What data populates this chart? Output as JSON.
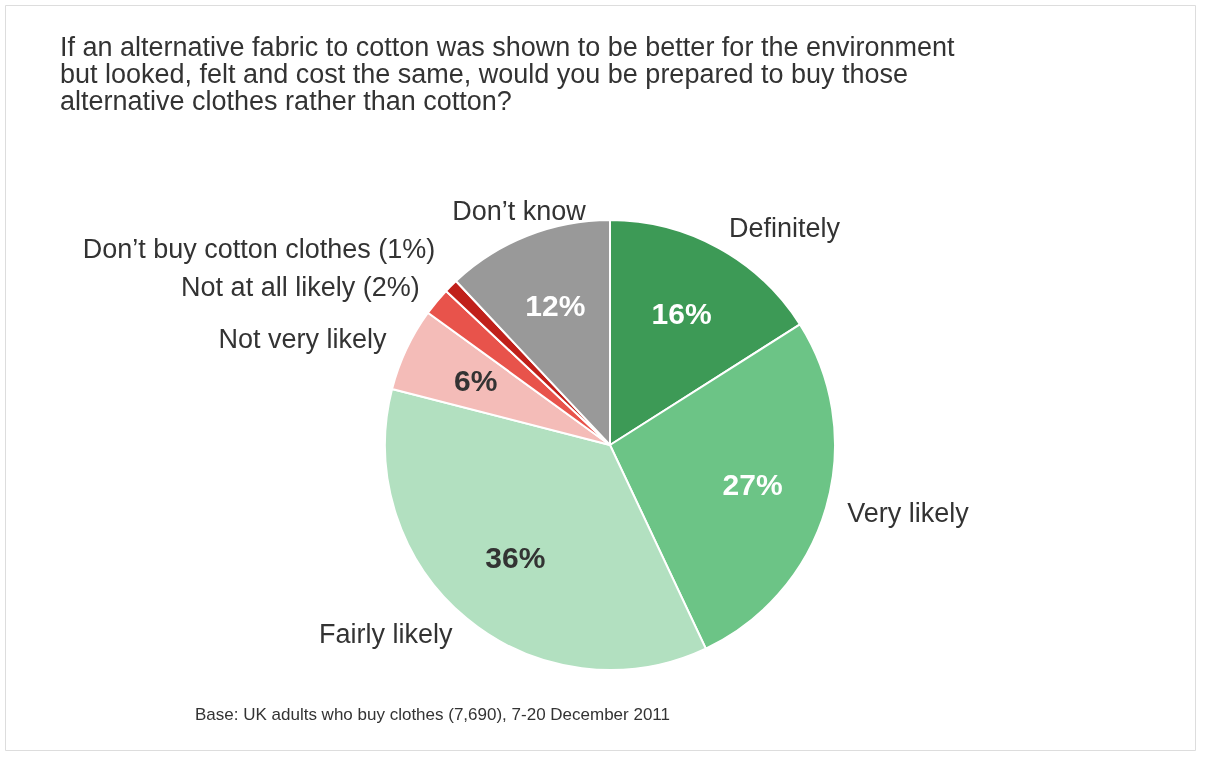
{
  "chart_data": {
    "type": "pie",
    "title": "If an alternative fabric to cotton was shown to be better for the environment but looked, felt and cost the same, would you be prepared to buy those alternative clothes rather than cotton?",
    "categories": [
      "Definitely",
      "Very likely",
      "Fairly likely",
      "Not very likely",
      "Not at all likely (2%)",
      "Don’t buy cotton clothes (1%)",
      "Don’t know"
    ],
    "values": [
      16,
      27,
      36,
      6,
      2,
      1,
      12
    ],
    "colors": [
      "#3d9a56",
      "#6cc486",
      "#b2e0c0",
      "#f4bcb8",
      "#e8534b",
      "#c0201a",
      "#999999"
    ],
    "value_labels": [
      "16%",
      "27%",
      "36%",
      "6%",
      null,
      null,
      "12%"
    ],
    "annotations": [
      "Base: UK adults who buy clothes (7,690), 7-20 December 2011"
    ]
  }
}
